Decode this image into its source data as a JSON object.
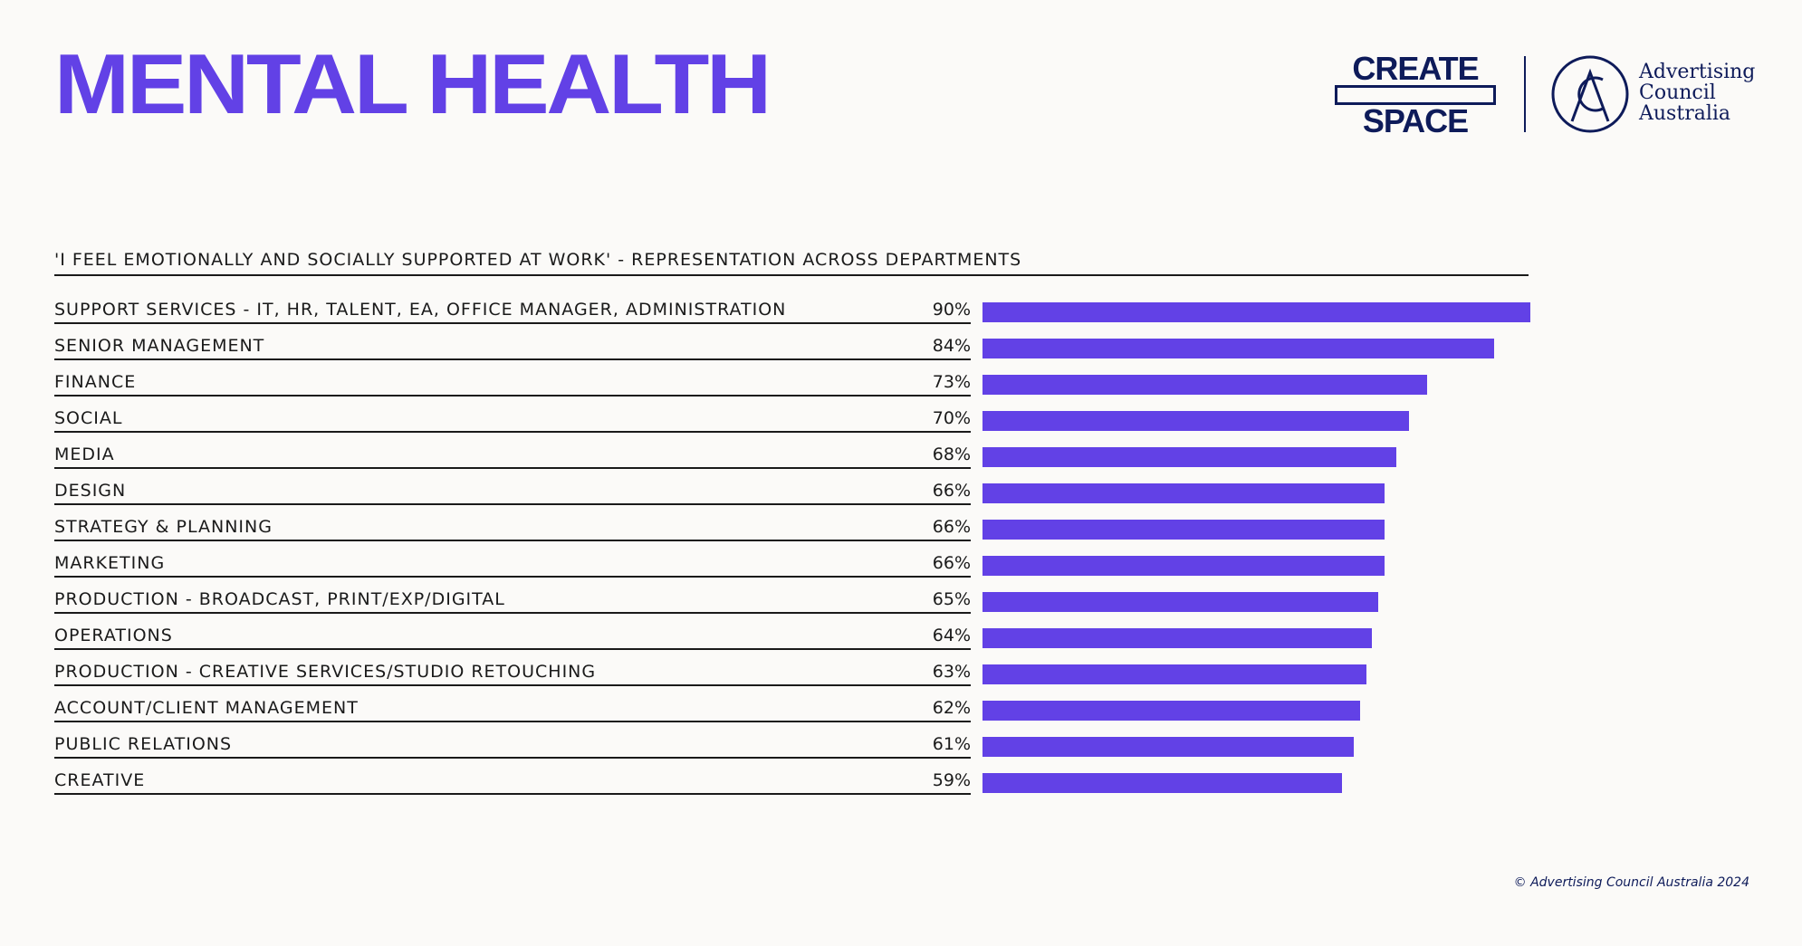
{
  "header": {
    "title": "MENTAL HEALTH",
    "logo_create_top": "CREATE",
    "logo_create_bottom": "SPACE",
    "acaa_lines": [
      "Advertising",
      "Council",
      "Australia"
    ]
  },
  "chart_data": {
    "type": "bar",
    "orientation": "horizontal",
    "title": "'I FEEL EMOTIONALLY AND SOCIALLY SUPPORTED AT WORK' - REPRESENTATION ACROSS DEPARTMENTS",
    "categories": [
      "SUPPORT SERVICES - IT, HR, TALENT, EA, OFFICE MANAGER, ADMINISTRATION",
      "SENIOR MANAGEMENT",
      "FINANCE",
      "SOCIAL",
      "MEDIA",
      "DESIGN",
      "STRATEGY & PLANNING",
      "MARKETING",
      "PRODUCTION - BROADCAST, PRINT/EXP/DIGITAL",
      "OPERATIONS",
      "PRODUCTION - CREATIVE SERVICES/STUDIO RETOUCHING",
      "ACCOUNT/CLIENT MANAGEMENT",
      "PUBLIC RELATIONS",
      "CREATIVE"
    ],
    "values": [
      90,
      84,
      73,
      70,
      68,
      66,
      66,
      66,
      65,
      64,
      63,
      62,
      61,
      59
    ],
    "value_labels": [
      "90%",
      "84%",
      "73%",
      "70%",
      "68%",
      "66%",
      "66%",
      "66%",
      "65%",
      "64%",
      "63%",
      "62%",
      "61%",
      "59%"
    ],
    "xlim": [
      0,
      90
    ],
    "bar_color": "#6241e6"
  },
  "footer": {
    "copyright": "© Advertising Council Australia 2024"
  }
}
